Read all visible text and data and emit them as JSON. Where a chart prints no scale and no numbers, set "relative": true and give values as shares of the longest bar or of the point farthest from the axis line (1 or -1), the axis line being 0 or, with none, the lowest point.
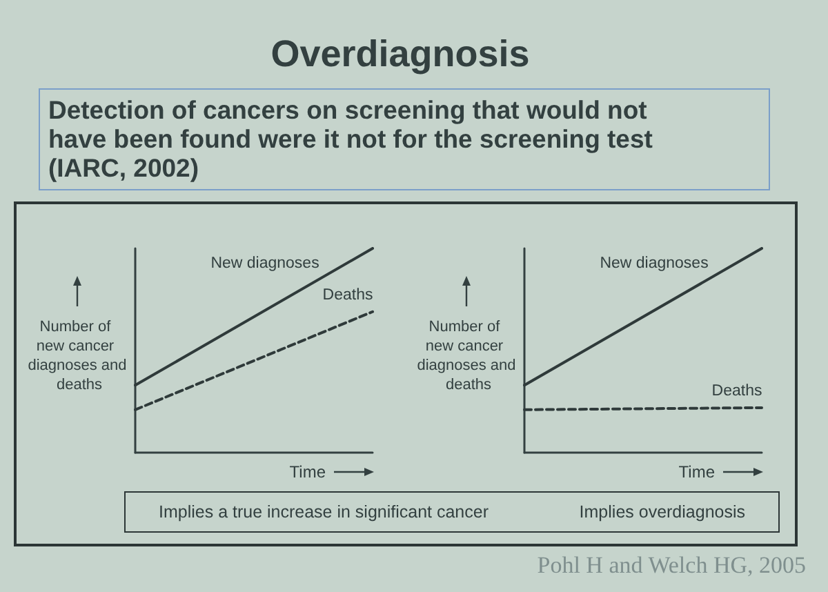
{
  "chart_data": [
    {
      "type": "line",
      "title": "Overdiagnosis",
      "subtitle": "Detection of cancers on screening that would not have been found were it not for the screening test (IARC, 2002)",
      "ylabel": "Number of new cancer diagnoses and deaths",
      "xlabel": "Time",
      "categories": [
        null,
        null
      ],
      "relative": true,
      "series": [
        {
          "name": "New diagnoses",
          "color": "#2f3a3a",
          "values": [
            0.33,
            1
          ],
          "line_style": "solid"
        },
        {
          "name": "Deaths",
          "color": "#2f3a3a",
          "values": [
            0.21,
            0.69
          ],
          "line_style": "dashed"
        }
      ],
      "annotations": [
        "Implies a true increase in significant cancer"
      ]
    },
    {
      "type": "line",
      "ylabel": "Number of new cancer diagnoses and deaths",
      "xlabel": "Time",
      "categories": [
        null,
        null
      ],
      "relative": true,
      "series": [
        {
          "name": "New diagnoses",
          "color": "#2f3a3a",
          "values": [
            0.33,
            1
          ],
          "line_style": "solid"
        },
        {
          "name": "Deaths",
          "color": "#2f3a3a",
          "values": [
            0.21,
            0.22
          ],
          "line_style": "dashed"
        }
      ],
      "annotations": [
        "Implies overdiagnosis",
        "Pohl H and Welch HG, 2005"
      ]
    }
  ]
}
